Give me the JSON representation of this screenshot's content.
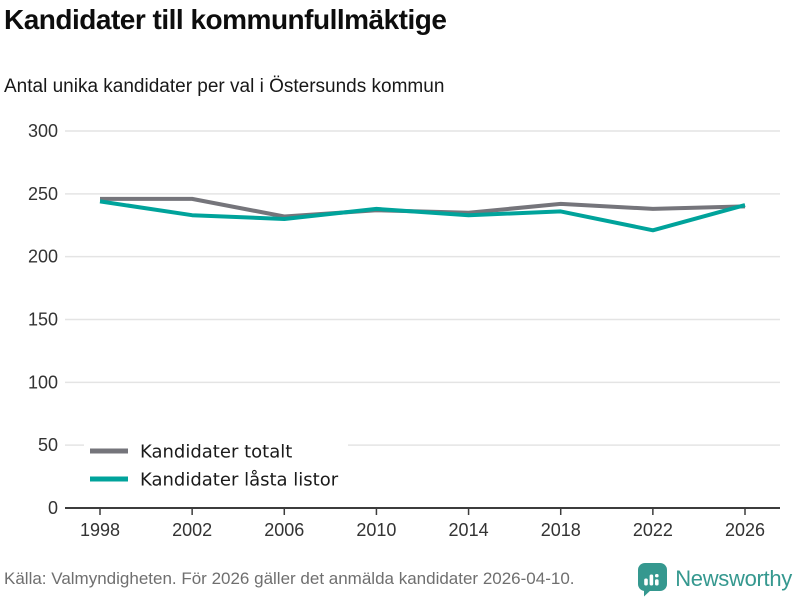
{
  "header": {
    "title": "Kandidater till kommunfullmäktige",
    "subtitle": "Antal unika kandidater per val i Östersunds kommun"
  },
  "chart_data": {
    "type": "line",
    "x": [
      1998,
      2002,
      2006,
      2010,
      2014,
      2018,
      2022,
      2026
    ],
    "series": [
      {
        "name": "Kandidater totalt",
        "color": "#75757b",
        "values": [
          246,
          246,
          232,
          237,
          235,
          242,
          238,
          240
        ]
      },
      {
        "name": "Kandidater låsta listor",
        "color": "#00a39b",
        "values": [
          244,
          233,
          230,
          238,
          233,
          236,
          221,
          241
        ]
      }
    ],
    "title": "Kandidater till kommunfullmäktige",
    "subtitle": "Antal unika kandidater per val i Östersunds kommun",
    "xlabel": "",
    "ylabel": "",
    "ylim": [
      0,
      300
    ],
    "yticks": [
      0,
      50,
      100,
      150,
      200,
      250,
      300
    ],
    "grid": "horizontal",
    "legend_position": "bottom-left"
  },
  "legend": {
    "items": [
      {
        "label": "Kandidater totalt",
        "color": "#75757b"
      },
      {
        "label": "Kandidater låsta listor",
        "color": "#00a39b"
      }
    ]
  },
  "footer": {
    "source": "Källa: Valmyndigheten. För 2026 gäller det anmälda kandidater 2026-04-10.",
    "brand": "Newsworthy"
  },
  "colors": {
    "accent_teal": "#00a39b",
    "series_gray": "#75757b",
    "logo_teal": "#35988f",
    "gridline": "#e4e4e4",
    "axis": "#3c3c3c",
    "tick_label": "#333333",
    "source_text": "#6f6f6f"
  }
}
